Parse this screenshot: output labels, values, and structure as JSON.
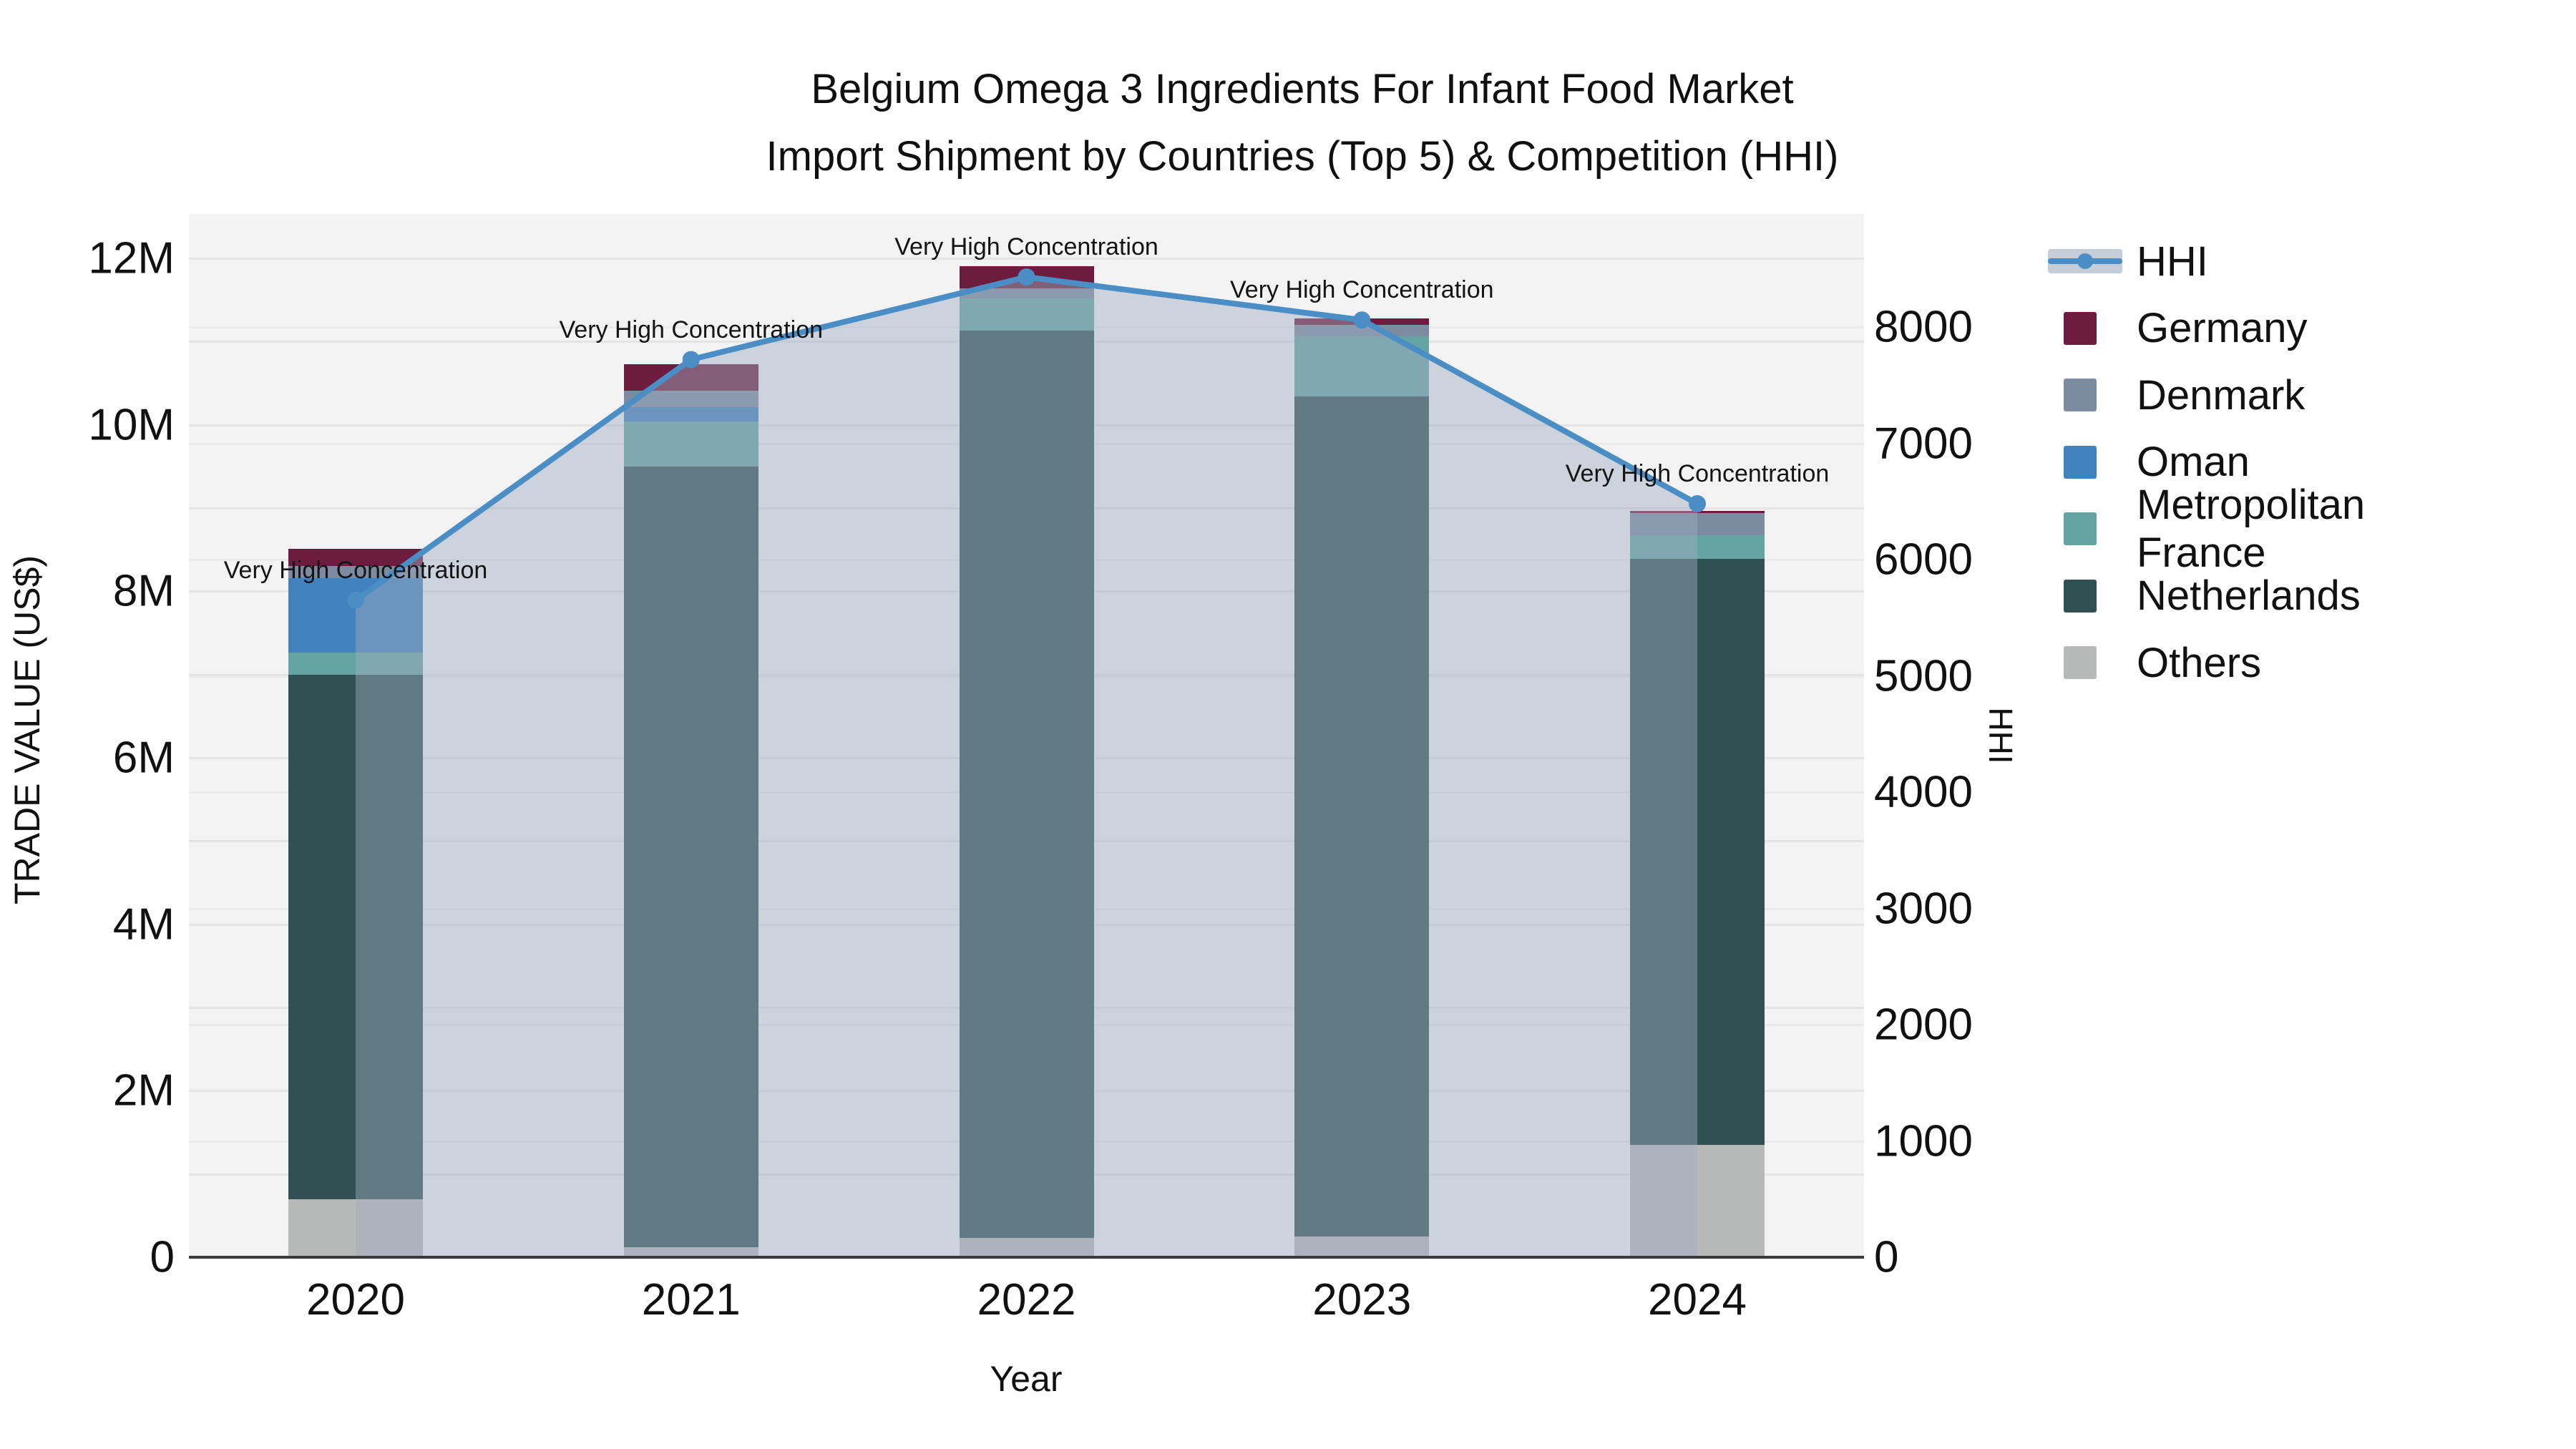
{
  "chart_data": {
    "type": "bar",
    "title_line1": "Belgium Omega 3 Ingredients For Infant Food Market",
    "title_line2": "Import Shipment by Countries (Top 5) & Competition (HHI)",
    "xlabel": "Year",
    "ylabel_left": "TRADE VALUE (US$)",
    "ylabel_right": "HHI",
    "categories": [
      "2020",
      "2021",
      "2022",
      "2023",
      "2024"
    ],
    "values_unit": "million US$",
    "stack_note": "stacked bottom to top: Others, Netherlands, Metropolitan France, Oman, Denmark, Germany",
    "series": [
      {
        "name": "Others",
        "color": "#b7b9b8",
        "values": [
          0.7,
          0.12,
          0.23,
          0.25,
          1.35
        ]
      },
      {
        "name": "Netherlands",
        "color": "#2f5152",
        "values": [
          6.3,
          9.38,
          10.9,
          10.09,
          7.04
        ]
      },
      {
        "name": "Metropolitan France",
        "color": "#64a5a3",
        "values": [
          0.26,
          0.54,
          0.39,
          0.72,
          0.28
        ]
      },
      {
        "name": "Oman",
        "color": "#4181be",
        "values": [
          0.9,
          0.17,
          0.0,
          0.0,
          0.0
        ]
      },
      {
        "name": "Denmark",
        "color": "#7c8ba0",
        "values": [
          0.14,
          0.2,
          0.12,
          0.14,
          0.27
        ]
      },
      {
        "name": "Germany",
        "color": "#6d1c3f",
        "values": [
          0.21,
          0.32,
          0.27,
          0.08,
          0.03
        ]
      }
    ],
    "bar_totals": [
      8.51,
      10.73,
      11.91,
      11.28,
      8.97
    ],
    "hhi_line": {
      "name": "HHI",
      "values": [
        5650,
        7720,
        8430,
        8060,
        6480
      ],
      "line_color": "#4b8ec5",
      "marker_color": "#4b8ec5",
      "area_color": "#9fadc2",
      "area_opacity": 0.45
    },
    "annotations": [
      "Very High Concentration",
      "Very High Concentration",
      "Very High Concentration",
      "Very High Concentration",
      "Very High Concentration"
    ],
    "y_left": {
      "ticks": [
        {
          "label": "0",
          "value": 0
        },
        {
          "label": "2M",
          "value": 2
        },
        {
          "label": "4M",
          "value": 4
        },
        {
          "label": "6M",
          "value": 6
        },
        {
          "label": "8M",
          "value": 8
        },
        {
          "label": "10M",
          "value": 10
        },
        {
          "label": "12M",
          "value": 12
        }
      ],
      "minor_step": 1,
      "max_minor": 12
    },
    "y_right": {
      "ticks": [
        {
          "label": "0",
          "value": 0
        },
        {
          "label": "1000",
          "value": 1000
        },
        {
          "label": "2000",
          "value": 2000
        },
        {
          "label": "3000",
          "value": 3000
        },
        {
          "label": "4000",
          "value": 4000
        },
        {
          "label": "5000",
          "value": 5000
        },
        {
          "label": "6000",
          "value": 6000
        },
        {
          "label": "7000",
          "value": 7000
        },
        {
          "label": "8000",
          "value": 8000
        }
      ]
    },
    "legend": {
      "items": [
        {
          "label": "HHI",
          "kind": "line",
          "color": "#4b8ec5"
        },
        {
          "label": "Germany",
          "kind": "swatch",
          "color": "#6d1c3f"
        },
        {
          "label": "Denmark",
          "kind": "swatch",
          "color": "#7c8ba0"
        },
        {
          "label": "Oman",
          "kind": "swatch",
          "color": "#4181be"
        },
        {
          "label": "Metropolitan France",
          "kind": "swatch",
          "color": "#64a5a3"
        },
        {
          "label": "Netherlands",
          "kind": "swatch",
          "color": "#2f5152"
        },
        {
          "label": "Others",
          "kind": "swatch",
          "color": "#b7b9b8"
        }
      ]
    },
    "colors": {
      "plot_bg": "#f3f3f4",
      "grid": "#e4e4e7",
      "axis_line": "#3a3a3a",
      "text": "#111111"
    }
  }
}
